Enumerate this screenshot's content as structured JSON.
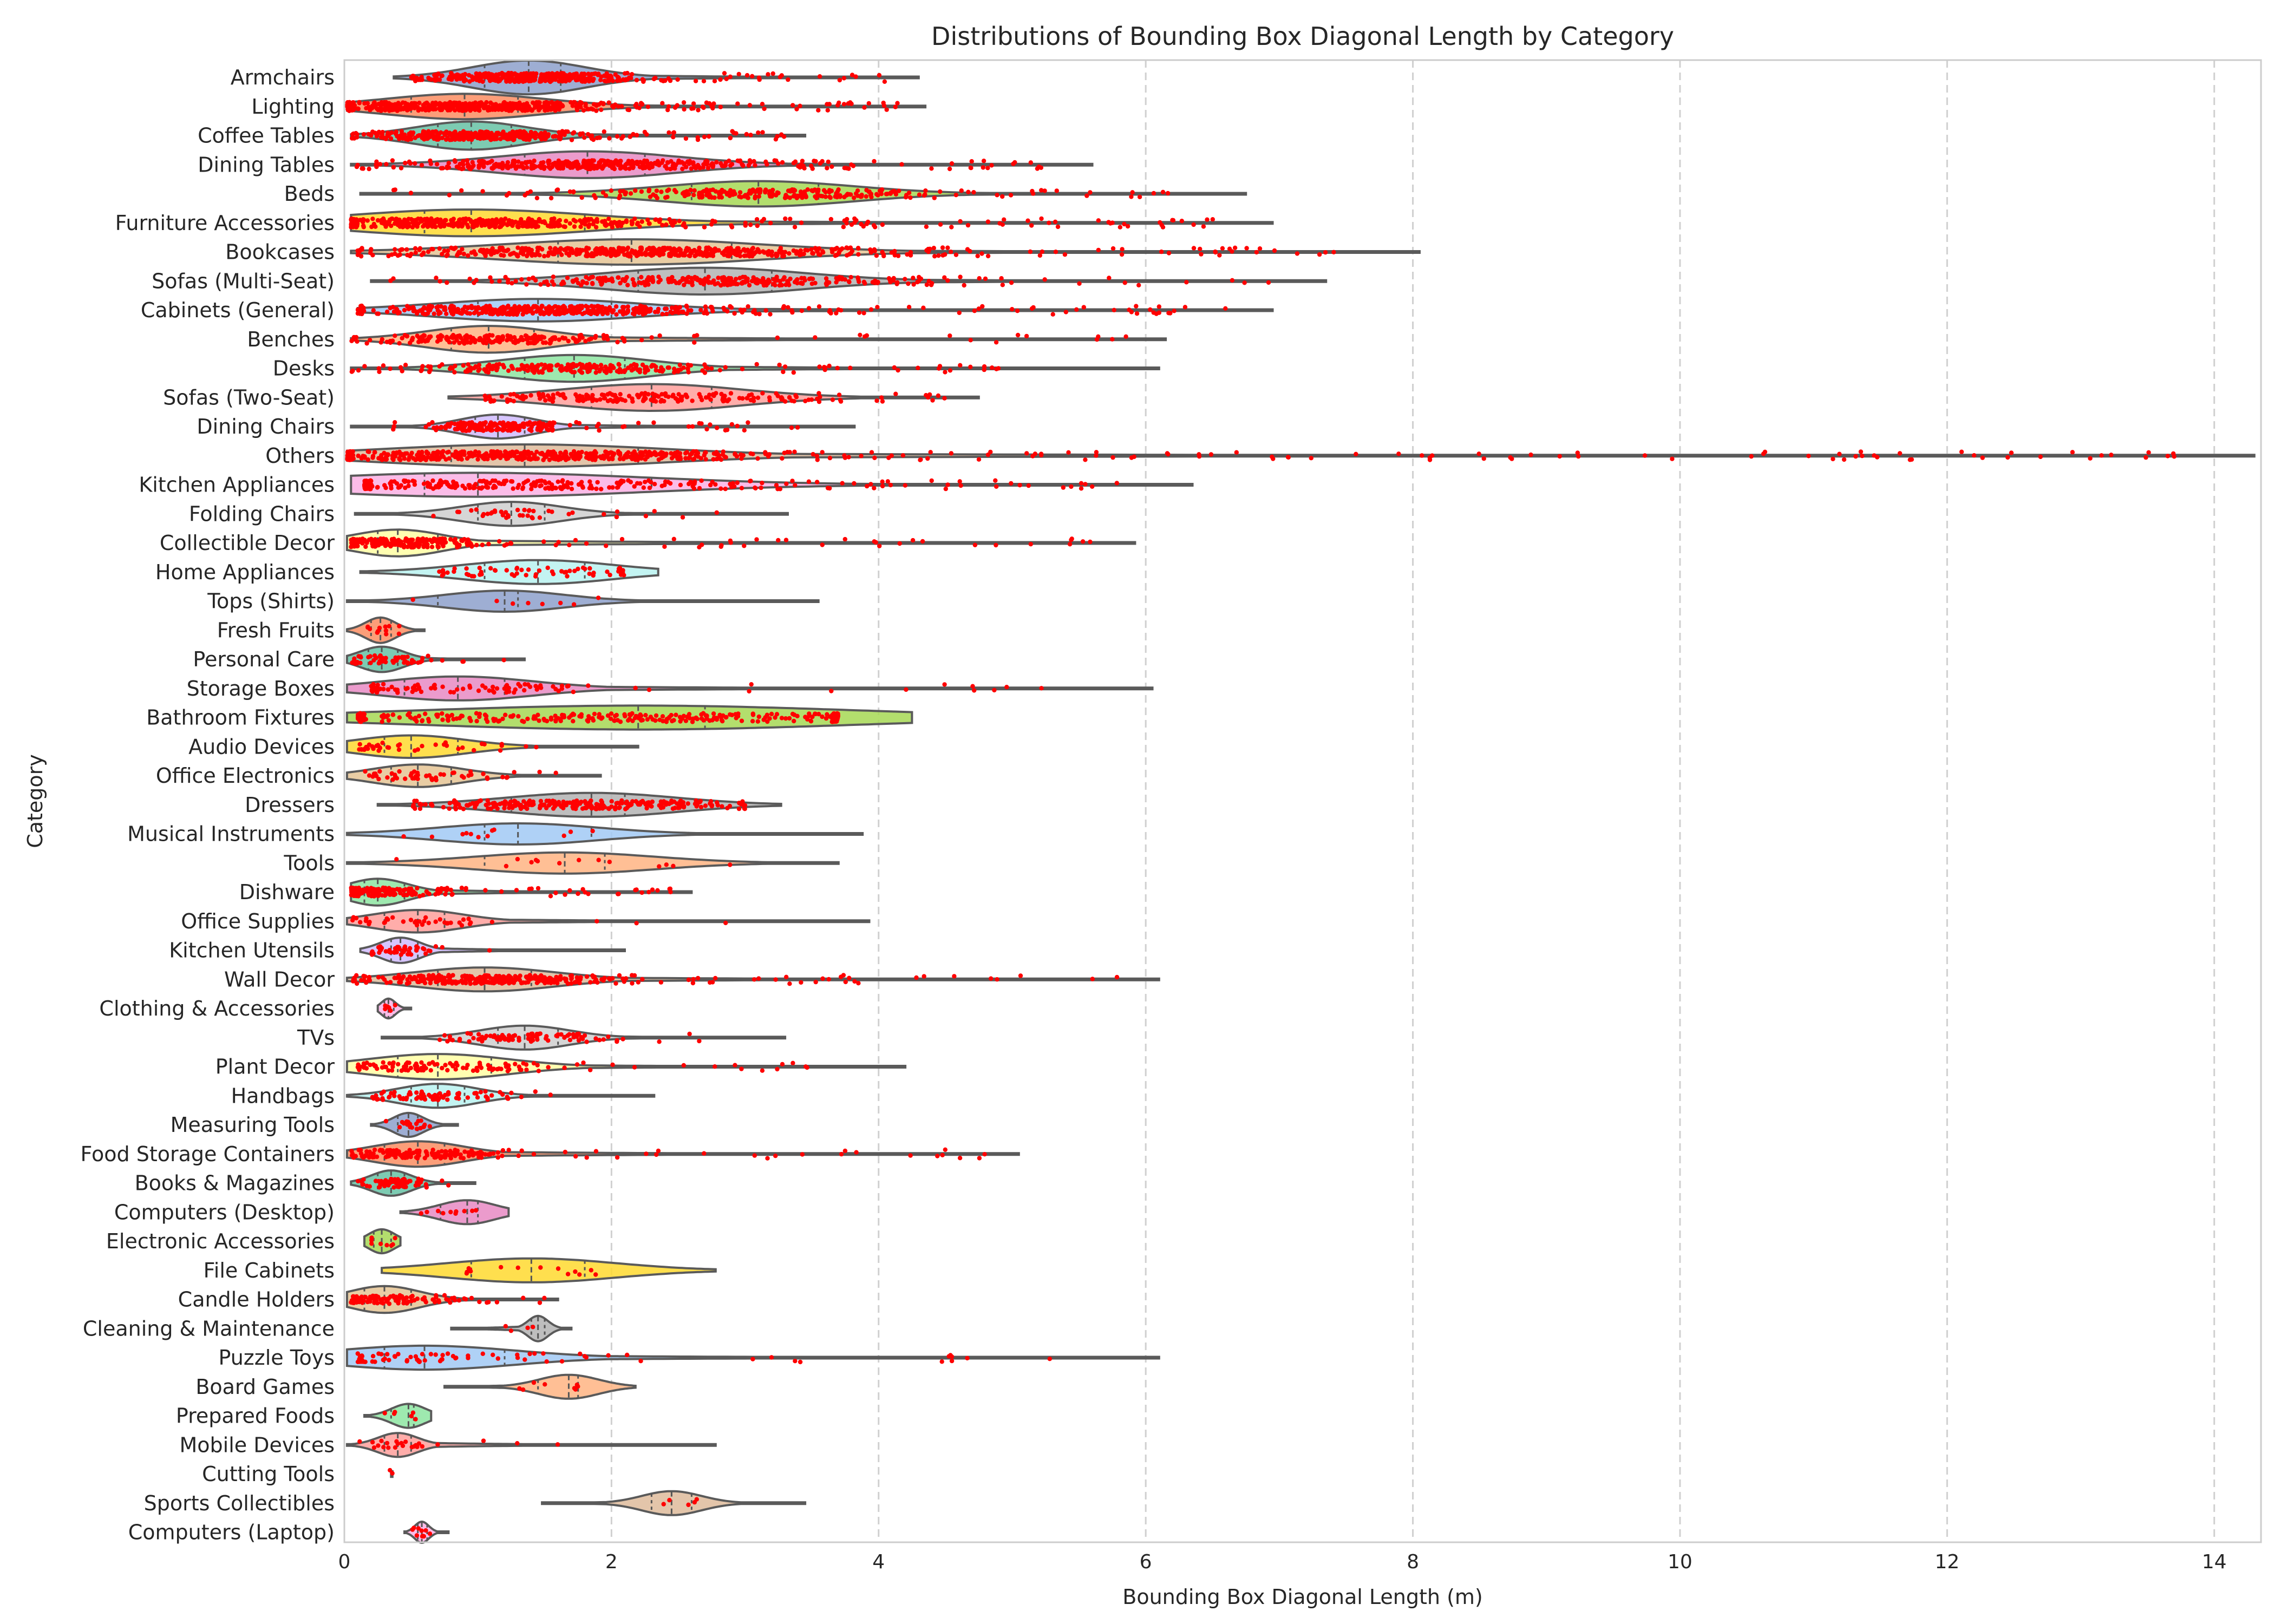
{
  "chart_data": {
    "type": "violin",
    "title": "Distributions of Bounding Box Diagonal Length by Category",
    "xlabel": "Bounding Box Diagonal Length (m)",
    "ylabel": "Category",
    "xlim": [
      0,
      14.35
    ],
    "xticks": [
      0,
      2,
      4,
      6,
      8,
      10,
      12,
      14
    ],
    "grid": "vertical dashed",
    "palette": [
      "#8da0cb",
      "#fc8d62",
      "#66c2a5",
      "#e78ac3",
      "#a6d854",
      "#ffd92f",
      "#e5c494",
      "#b3b3b3",
      "#a1c9f4",
      "#ffb482",
      "#8de5a1",
      "#ff9f9b",
      "#d0bbff",
      "#debb9b",
      "#fab0e4",
      "#cfcfcf",
      "#fffea3",
      "#b9f2f0"
    ],
    "point_color": "#ff0000",
    "categories": [
      {
        "name": "Armchairs",
        "min": 0.37,
        "max": 4.3,
        "q1": 1.05,
        "median": 1.38,
        "q3": 1.62,
        "width": 1.2,
        "n": 380,
        "lo": 0.5,
        "hi": 4.1
      },
      {
        "name": "Lighting",
        "min": 0.02,
        "max": 4.35,
        "q1": 0.5,
        "median": 0.9,
        "q3": 1.3,
        "width": 0.9,
        "n": 500,
        "lo": 0.02,
        "hi": 4.2
      },
      {
        "name": "Coffee Tables",
        "min": 0.05,
        "max": 3.45,
        "q1": 0.7,
        "median": 0.95,
        "q3": 1.25,
        "width": 1.0,
        "n": 380,
        "lo": 0.05,
        "hi": 3.3
      },
      {
        "name": "Dining Tables",
        "min": 0.05,
        "max": 5.6,
        "q1": 1.35,
        "median": 1.82,
        "q3": 2.25,
        "width": 0.95,
        "n": 420,
        "lo": 0.05,
        "hi": 5.3
      },
      {
        "name": "Beds",
        "min": 0.12,
        "max": 6.75,
        "q1": 2.6,
        "median": 3.1,
        "q3": 3.55,
        "width": 0.9,
        "n": 260,
        "lo": 0.12,
        "hi": 6.6
      },
      {
        "name": "Furniture Accessories",
        "min": 0.05,
        "max": 6.95,
        "q1": 0.6,
        "median": 0.95,
        "q3": 1.8,
        "width": 0.95,
        "n": 520,
        "lo": 0.05,
        "hi": 6.7
      },
      {
        "name": "Bookcases",
        "min": 0.05,
        "max": 8.05,
        "q1": 1.6,
        "median": 2.15,
        "q3": 2.9,
        "width": 0.9,
        "n": 560,
        "lo": 0.1,
        "hi": 7.5
      },
      {
        "name": "Sofas (Multi-Seat)",
        "min": 0.2,
        "max": 7.35,
        "q1": 2.2,
        "median": 2.7,
        "q3": 3.2,
        "width": 0.95,
        "n": 300,
        "lo": 0.3,
        "hi": 7.0
      },
      {
        "name": "Cabinets (General)",
        "min": 0.1,
        "max": 6.95,
        "q1": 1.0,
        "median": 1.45,
        "q3": 2.0,
        "width": 0.8,
        "n": 480,
        "lo": 0.1,
        "hi": 6.6
      },
      {
        "name": "Benches",
        "min": 0.05,
        "max": 6.15,
        "q1": 0.8,
        "median": 1.08,
        "q3": 1.42,
        "width": 0.95,
        "n": 220,
        "lo": 0.05,
        "hi": 6.0
      },
      {
        "name": "Desks",
        "min": 0.05,
        "max": 6.1,
        "q1": 1.35,
        "median": 1.72,
        "q3": 2.1,
        "width": 0.95,
        "n": 260,
        "lo": 0.05,
        "hi": 5.0
      },
      {
        "name": "Sofas (Two-Seat)",
        "min": 0.78,
        "max": 4.75,
        "q1": 1.85,
        "median": 2.3,
        "q3": 2.75,
        "width": 0.95,
        "n": 200,
        "lo": 1.05,
        "hi": 4.5
      },
      {
        "name": "Dining Chairs",
        "min": 0.05,
        "max": 3.82,
        "q1": 0.98,
        "median": 1.15,
        "q3": 1.35,
        "width": 0.85,
        "n": 200,
        "lo": 0.3,
        "hi": 3.4
      },
      {
        "name": "Others",
        "min": 0.02,
        "max": 14.3,
        "q1": 0.8,
        "median": 1.35,
        "q3": 2.2,
        "width": 0.8,
        "n": 600,
        "lo": 0.02,
        "hi": 13.8
      },
      {
        "name": "Kitchen Appliances",
        "min": 0.05,
        "max": 6.35,
        "q1": 0.6,
        "median": 1.0,
        "q3": 2.3,
        "width": 0.85,
        "n": 320,
        "lo": 0.15,
        "hi": 5.8
      },
      {
        "name": "Folding Chairs",
        "min": 0.08,
        "max": 3.32,
        "q1": 1.0,
        "median": 1.25,
        "q3": 1.5,
        "width": 0.85,
        "n": 40,
        "lo": 0.6,
        "hi": 2.8
      },
      {
        "name": "Collectible Decor",
        "min": 0.02,
        "max": 5.92,
        "q1": 0.25,
        "median": 0.4,
        "q3": 0.7,
        "width": 0.95,
        "n": 230,
        "lo": 0.05,
        "hi": 5.6
      },
      {
        "name": "Home Appliances",
        "min": 0.12,
        "max": 2.35,
        "q1": 1.05,
        "median": 1.45,
        "q3": 1.8,
        "width": 0.85,
        "n": 60,
        "lo": 0.7,
        "hi": 2.1
      },
      {
        "name": "Tops (Shirts)",
        "min": 0.02,
        "max": 3.55,
        "q1": 0.7,
        "median": 1.2,
        "q3": 1.3,
        "width": 0.75,
        "n": 8,
        "lo": 0.5,
        "hi": 2.6
      },
      {
        "name": "Fresh Fruits",
        "min": 0.02,
        "max": 0.6,
        "q1": 0.2,
        "median": 0.27,
        "q3": 0.35,
        "width": 0.9,
        "n": 12,
        "lo": 0.1,
        "hi": 0.45
      },
      {
        "name": "Personal Care",
        "min": 0.02,
        "max": 1.35,
        "q1": 0.18,
        "median": 0.28,
        "q3": 0.4,
        "width": 0.9,
        "n": 60,
        "lo": 0.05,
        "hi": 1.3
      },
      {
        "name": "Storage Boxes",
        "min": 0.02,
        "max": 6.05,
        "q1": 0.45,
        "median": 0.85,
        "q3": 1.2,
        "width": 0.85,
        "n": 100,
        "lo": 0.2,
        "hi": 5.3
      },
      {
        "name": "Bathroom Fixtures",
        "min": 0.02,
        "max": 4.25,
        "q1": 0.5,
        "median": 2.2,
        "q3": 2.7,
        "width": 0.85,
        "n": 300,
        "lo": 0.1,
        "hi": 3.7
      },
      {
        "name": "Audio Devices",
        "min": 0.02,
        "max": 2.2,
        "q1": 0.3,
        "median": 0.5,
        "q3": 0.85,
        "width": 0.8,
        "n": 40,
        "lo": 0.1,
        "hi": 1.8
      },
      {
        "name": "Office Electronics",
        "min": 0.02,
        "max": 1.92,
        "q1": 0.35,
        "median": 0.55,
        "q3": 0.8,
        "width": 0.8,
        "n": 50,
        "lo": 0.15,
        "hi": 1.6
      },
      {
        "name": "Dressers",
        "min": 0.25,
        "max": 3.27,
        "q1": 1.25,
        "median": 1.85,
        "q3": 2.1,
        "width": 0.85,
        "n": 260,
        "lo": 0.5,
        "hi": 3.0
      },
      {
        "name": "Musical Instruments",
        "min": 0.02,
        "max": 3.88,
        "q1": 1.05,
        "median": 1.3,
        "q3": 1.85,
        "width": 0.75,
        "n": 12,
        "lo": 0.4,
        "hi": 3.0
      },
      {
        "name": "Tools",
        "min": 0.02,
        "max": 3.7,
        "q1": 1.05,
        "median": 1.65,
        "q3": 1.95,
        "width": 0.75,
        "n": 14,
        "lo": 0.3,
        "hi": 2.9
      },
      {
        "name": "Dishware",
        "min": 0.05,
        "max": 2.6,
        "q1": 0.15,
        "median": 0.25,
        "q3": 0.45,
        "width": 0.95,
        "n": 180,
        "lo": 0.05,
        "hi": 2.5
      },
      {
        "name": "Office Supplies",
        "min": 0.02,
        "max": 3.93,
        "q1": 0.3,
        "median": 0.55,
        "q3": 0.75,
        "width": 0.8,
        "n": 40,
        "lo": 0.05,
        "hi": 3.1
      },
      {
        "name": "Kitchen Utensils",
        "min": 0.12,
        "max": 2.1,
        "q1": 0.35,
        "median": 0.42,
        "q3": 0.55,
        "width": 0.9,
        "n": 50,
        "lo": 0.2,
        "hi": 1.1
      },
      {
        "name": "Wall Decor",
        "min": 0.02,
        "max": 6.1,
        "q1": 0.7,
        "median": 1.05,
        "q3": 1.4,
        "width": 0.85,
        "n": 330,
        "lo": 0.05,
        "hi": 5.8
      },
      {
        "name": "Clothing & Accessories",
        "min": 0.25,
        "max": 0.5,
        "q1": 0.3,
        "median": 0.33,
        "q3": 0.37,
        "width": 0.7,
        "n": 6,
        "lo": 0.3,
        "hi": 0.48
      },
      {
        "name": "TVs",
        "min": 0.28,
        "max": 3.3,
        "q1": 1.15,
        "median": 1.35,
        "q3": 1.6,
        "width": 0.85,
        "n": 90,
        "lo": 0.7,
        "hi": 2.8
      },
      {
        "name": "Plant Decor",
        "min": 0.02,
        "max": 4.2,
        "q1": 0.4,
        "median": 0.7,
        "q3": 1.1,
        "width": 0.9,
        "n": 120,
        "lo": 0.1,
        "hi": 3.6
      },
      {
        "name": "Handbags",
        "min": 0.02,
        "max": 2.32,
        "q1": 0.5,
        "median": 0.7,
        "q3": 0.9,
        "width": 0.85,
        "n": 80,
        "lo": 0.2,
        "hi": 1.6
      },
      {
        "name": "Measuring Tools",
        "min": 0.2,
        "max": 0.85,
        "q1": 0.4,
        "median": 0.48,
        "q3": 0.55,
        "width": 0.85,
        "n": 20,
        "lo": 0.3,
        "hi": 0.65
      },
      {
        "name": "Food Storage Containers",
        "min": 0.02,
        "max": 5.05,
        "q1": 0.3,
        "median": 0.55,
        "q3": 0.75,
        "width": 0.9,
        "n": 180,
        "lo": 0.05,
        "hi": 4.8
      },
      {
        "name": "Books & Magazines",
        "min": 0.05,
        "max": 0.98,
        "q1": 0.25,
        "median": 0.35,
        "q3": 0.45,
        "width": 0.9,
        "n": 60,
        "lo": 0.1,
        "hi": 0.85
      },
      {
        "name": "Computers (Desktop)",
        "min": 0.42,
        "max": 1.23,
        "q1": 0.72,
        "median": 0.92,
        "q3": 1.0,
        "width": 0.85,
        "n": 10,
        "lo": 0.55,
        "hi": 1.0
      },
      {
        "name": "Electronic Accessories",
        "min": 0.15,
        "max": 0.42,
        "q1": 0.22,
        "median": 0.28,
        "q3": 0.35,
        "width": 0.85,
        "n": 8,
        "lo": 0.2,
        "hi": 0.38
      },
      {
        "name": "File Cabinets",
        "min": 0.28,
        "max": 2.78,
        "q1": 0.95,
        "median": 1.4,
        "q3": 1.8,
        "width": 0.85,
        "n": 14,
        "lo": 0.9,
        "hi": 2.0
      },
      {
        "name": "Candle Holders",
        "min": 0.02,
        "max": 1.6,
        "q1": 0.15,
        "median": 0.3,
        "q3": 0.5,
        "width": 0.95,
        "n": 110,
        "lo": 0.05,
        "hi": 1.6
      },
      {
        "name": "Cleaning & Maintenance",
        "min": 0.8,
        "max": 1.7,
        "q1": 1.4,
        "median": 1.45,
        "q3": 1.5,
        "width": 0.9,
        "n": 4,
        "lo": 1.1,
        "hi": 1.5
      },
      {
        "name": "Puzzle Toys",
        "min": 0.02,
        "max": 6.1,
        "q1": 0.3,
        "median": 0.6,
        "q3": 1.2,
        "width": 0.85,
        "n": 80,
        "lo": 0.1,
        "hi": 5.3
      },
      {
        "name": "Board Games",
        "min": 0.75,
        "max": 2.18,
        "q1": 1.45,
        "median": 1.68,
        "q3": 1.75,
        "width": 0.85,
        "n": 8,
        "lo": 1.2,
        "hi": 1.75
      },
      {
        "name": "Prepared Foods",
        "min": 0.15,
        "max": 0.65,
        "q1": 0.35,
        "median": 0.48,
        "q3": 0.52,
        "width": 0.85,
        "n": 6,
        "lo": 0.3,
        "hi": 0.55
      },
      {
        "name": "Mobile Devices",
        "min": 0.02,
        "max": 2.78,
        "q1": 0.3,
        "median": 0.4,
        "q3": 0.5,
        "width": 0.85,
        "n": 24,
        "lo": 0.1,
        "hi": 2.3
      },
      {
        "name": "Cutting Tools",
        "min": 0.35,
        "max": 0.36,
        "q1": 0.35,
        "median": 0.355,
        "q3": 0.36,
        "width": 0.2,
        "n": 2,
        "lo": 0.35,
        "hi": 0.36
      },
      {
        "name": "Sports Collectibles",
        "min": 1.48,
        "max": 3.45,
        "q1": 2.3,
        "median": 2.45,
        "q3": 2.6,
        "width": 0.85,
        "n": 5,
        "lo": 2.2,
        "hi": 2.75
      },
      {
        "name": "Computers (Laptop)",
        "min": 0.45,
        "max": 0.78,
        "q1": 0.55,
        "median": 0.58,
        "q3": 0.62,
        "width": 0.75,
        "n": 10,
        "lo": 0.5,
        "hi": 0.65
      }
    ]
  }
}
